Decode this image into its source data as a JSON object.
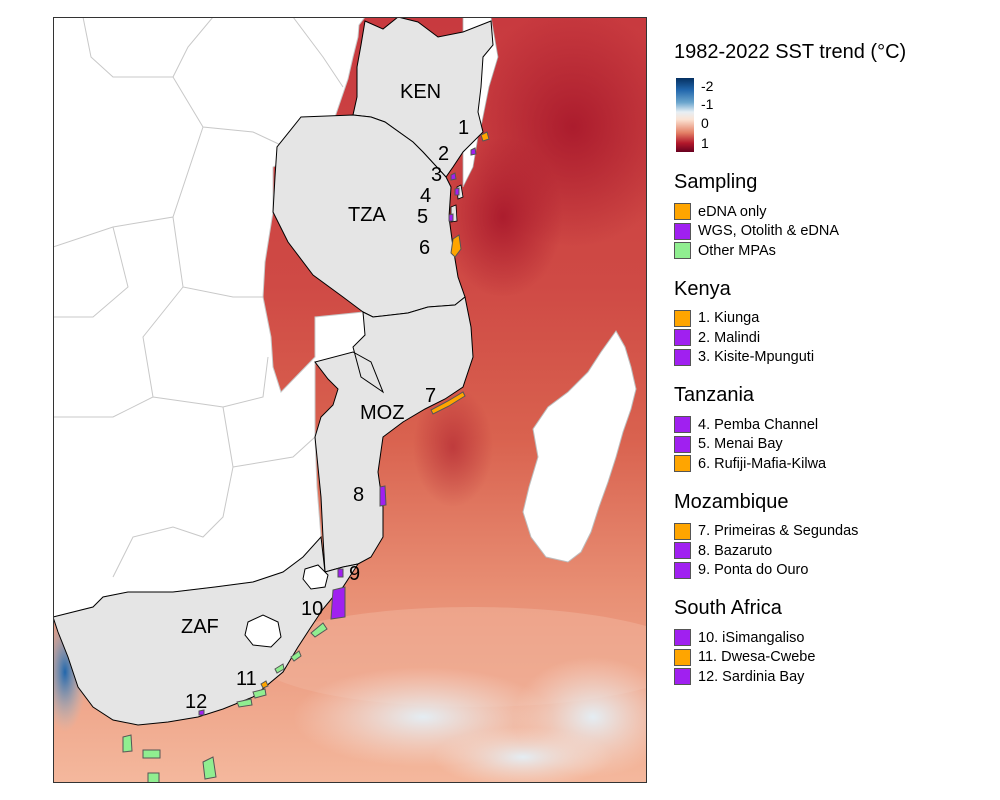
{
  "colors": {
    "ocean_warm": "#d6604d",
    "ocean_hot": "#c0333a",
    "ocean_light": "#f4a582",
    "ocean_pale": "#fbe3d4",
    "ocean_cool": "#e6eef4",
    "land_focus": "#e5e5e5",
    "land_other": "#ffffff",
    "eDNA_only": "#ffa500",
    "wgs_otolith_edna": "#a020f0",
    "other_mpas": "#90ee90"
  },
  "map": {
    "country_labels": [
      {
        "code": "KEN"
      },
      {
        "code": "TZA"
      },
      {
        "code": "MOZ"
      },
      {
        "code": "ZAF"
      }
    ],
    "site_numbers": [
      "1",
      "2",
      "3",
      "4",
      "5",
      "6",
      "7",
      "8",
      "9",
      "10",
      "11",
      "12"
    ]
  },
  "legend": {
    "sst": {
      "title": "1982-2022 SST trend (°C)",
      "ticks": [
        "-2",
        "-1",
        "0",
        "1"
      ]
    },
    "sampling": {
      "title": "Sampling",
      "items": [
        {
          "label": "eDNA only",
          "color": "#ffa500"
        },
        {
          "label": "WGS, Otolith & eDNA",
          "color": "#a020f0"
        },
        {
          "label": "Other MPAs",
          "color": "#90ee90"
        }
      ]
    },
    "kenya": {
      "title": "Kenya",
      "items": [
        {
          "label": "1. Kiunga",
          "color": "#ffa500"
        },
        {
          "label": "2. Malindi",
          "color": "#a020f0"
        },
        {
          "label": "3. Kisite-Mpunguti",
          "color": "#a020f0"
        }
      ]
    },
    "tanzania": {
      "title": "Tanzania",
      "items": [
        {
          "label": "4. Pemba Channel",
          "color": "#a020f0"
        },
        {
          "label": "5. Menai Bay",
          "color": "#a020f0"
        },
        {
          "label": "6. Rufiji-Mafia-Kilwa",
          "color": "#ffa500"
        }
      ]
    },
    "mozambique": {
      "title": "Mozambique",
      "items": [
        {
          "label": "7. Primeiras & Segundas",
          "color": "#ffa500"
        },
        {
          "label": "8. Bazaruto",
          "color": "#a020f0"
        },
        {
          "label": "9. Ponta do Ouro",
          "color": "#a020f0"
        }
      ]
    },
    "south_africa": {
      "title": "South Africa",
      "items": [
        {
          "label": "10. iSimangaliso",
          "color": "#a020f0"
        },
        {
          "label": "11. Dwesa-Cwebe",
          "color": "#ffa500"
        },
        {
          "label": "12. Sardinia Bay",
          "color": "#a020f0"
        }
      ]
    }
  }
}
